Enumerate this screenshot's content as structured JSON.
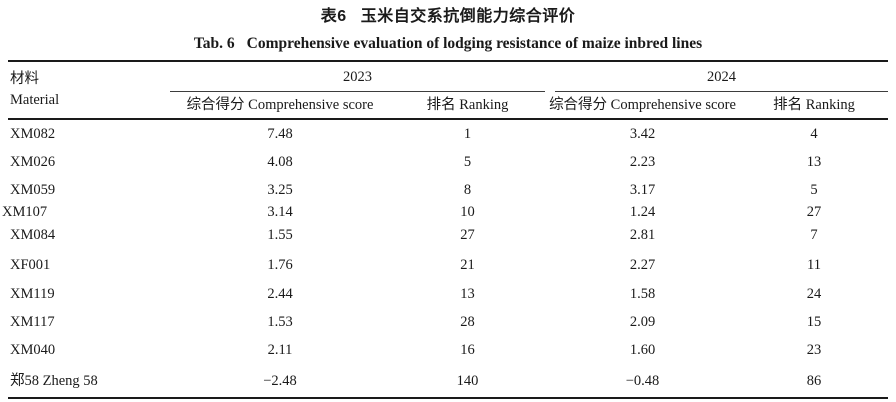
{
  "title": {
    "zh_label": "表6",
    "zh_text": "玉米自交系抗倒能力综合评价",
    "en_label": "Tab. 6",
    "en_text": "Comprehensive evaluation of lodging resistance of maize inbred lines"
  },
  "table": {
    "material_header": {
      "zh": "材料",
      "en": "Material"
    },
    "years": [
      "2023",
      "2024"
    ],
    "sub_columns": {
      "score": "综合得分 Comprehensive score",
      "rank": "排名 Ranking"
    },
    "rows": [
      {
        "material": "XM082",
        "score_2023": "7.48",
        "rank_2023": "1",
        "score_2024": "3.42",
        "rank_2024": "4"
      },
      {
        "material": "XM026",
        "score_2023": "4.08",
        "rank_2023": "5",
        "score_2024": "2.23",
        "rank_2024": "13"
      },
      {
        "material": "XM059",
        "score_2023": "3.25",
        "rank_2023": "8",
        "score_2024": "3.17",
        "rank_2024": "5"
      },
      {
        "material": "XM107",
        "score_2023": "3.14",
        "rank_2023": "10",
        "score_2024": "1.24",
        "rank_2024": "27"
      },
      {
        "material": "XM084",
        "score_2023": "1.55",
        "rank_2023": "27",
        "score_2024": "2.81",
        "rank_2024": "7"
      },
      {
        "material": "XF001",
        "score_2023": "1.76",
        "rank_2023": "21",
        "score_2024": "2.27",
        "rank_2024": "11"
      },
      {
        "material": "XM119",
        "score_2023": "2.44",
        "rank_2023": "13",
        "score_2024": "1.58",
        "rank_2024": "24"
      },
      {
        "material": "XM117",
        "score_2023": "1.53",
        "rank_2023": "28",
        "score_2024": "2.09",
        "rank_2024": "15"
      },
      {
        "material": "XM040",
        "score_2023": "2.11",
        "rank_2023": "16",
        "score_2024": "1.60",
        "rank_2024": "23"
      },
      {
        "material": "郑58 Zheng 58",
        "score_2023": "−2.48",
        "rank_2023": "140",
        "score_2024": "−0.48",
        "rank_2024": "86"
      }
    ]
  },
  "colors": {
    "text": "#1a1a1a",
    "heavy_rule": "#1a1a1a",
    "light_rule": "#3d3d3d",
    "background": "#ffffff"
  }
}
